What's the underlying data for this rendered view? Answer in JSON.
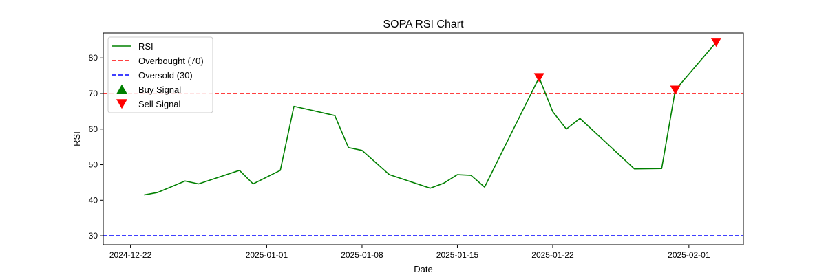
{
  "chart_data": {
    "type": "line",
    "title": "SOPA RSI Chart",
    "xlabel": "Date",
    "ylabel": "RSI",
    "xlim": [
      "2024-12-20",
      "2025-02-05"
    ],
    "ylim": [
      27.5,
      87
    ],
    "x_ticks": [
      "2024-12-22",
      "2025-01-01",
      "2025-01-08",
      "2025-01-15",
      "2025-01-22",
      "2025-02-01"
    ],
    "y_ticks": [
      30,
      40,
      50,
      60,
      70,
      80
    ],
    "grid": false,
    "legend_position": "top-left",
    "series": [
      {
        "name": "RSI",
        "color": "#008000",
        "x": [
          "2024-12-23",
          "2024-12-24",
          "2024-12-26",
          "2024-12-27",
          "2024-12-30",
          "2024-12-31",
          "2025-01-02",
          "2025-01-03",
          "2025-01-06",
          "2025-01-07",
          "2025-01-08",
          "2025-01-10",
          "2025-01-13",
          "2025-01-14",
          "2025-01-15",
          "2025-01-16",
          "2025-01-17",
          "2025-01-21",
          "2025-01-22",
          "2025-01-23",
          "2025-01-24",
          "2025-01-28",
          "2025-01-30",
          "2025-01-31",
          "2025-02-03"
        ],
        "y": [
          41.5,
          42.2,
          45.4,
          44.6,
          48.4,
          44.6,
          48.4,
          66.4,
          63.8,
          54.8,
          54.0,
          47.2,
          43.4,
          44.8,
          47.2,
          47.0,
          43.7,
          74.5,
          64.9,
          60.0,
          63.0,
          48.8,
          48.9,
          71.0,
          84.4
        ]
      }
    ],
    "reference_lines": [
      {
        "name": "Overbought (70)",
        "value": 70,
        "color": "#ff0000",
        "style": "dashed"
      },
      {
        "name": "Oversold (30)",
        "value": 30,
        "color": "#0000ff",
        "style": "dashed"
      }
    ],
    "markers": [
      {
        "name": "Buy Signal",
        "shape": "triangle-up",
        "color": "#008000",
        "points": []
      },
      {
        "name": "Sell Signal",
        "shape": "triangle-down",
        "color": "#ff0000",
        "points": [
          {
            "x": "2025-01-21",
            "y": 74.5
          },
          {
            "x": "2025-01-31",
            "y": 71.0
          },
          {
            "x": "2025-02-03",
            "y": 84.4
          }
        ]
      }
    ]
  }
}
